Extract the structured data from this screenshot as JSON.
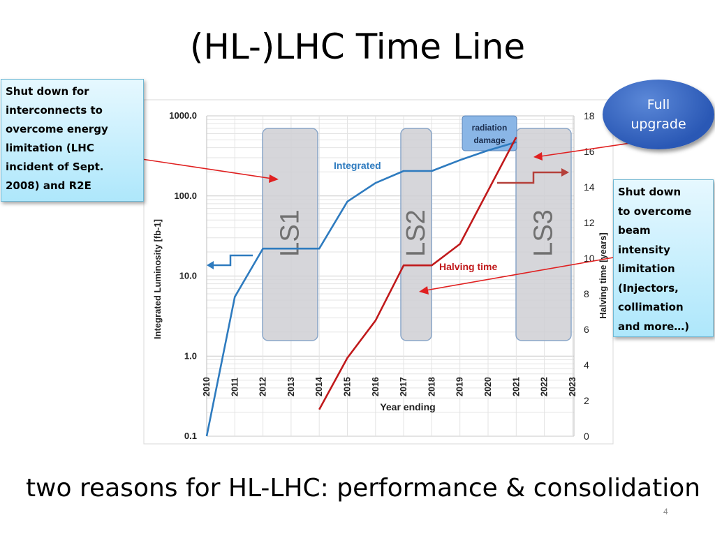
{
  "slide": {
    "title": "(HL-)LHC Time Line",
    "bottom_text": "two reasons for HL-LHC: performance & consolidation",
    "page_number": "4"
  },
  "callouts": {
    "left_lines": [
      "Shut down for",
      "interconnects to",
      "overcome energy",
      "limitation (LHC",
      "incident of Sept.",
      "2008) and R2E"
    ],
    "right_lines": [
      "Shut down",
      "to overcome",
      "beam",
      "intensity",
      "limitation",
      "(Injectors,",
      "collimation",
      "and more…)"
    ],
    "upgrade_lines": [
      "Full",
      "upgrade"
    ]
  },
  "chart_data": {
    "type": "line",
    "xlabel": "Year ending",
    "ylabel_left": "Integrated Luminosity [fb-1]",
    "ylabel_right": "Halving time [years]",
    "x_ticks": [
      "2010",
      "2011",
      "2012",
      "2013",
      "2014",
      "2015",
      "2016",
      "2017",
      "2018",
      "2019",
      "2020",
      "2021",
      "2022",
      "2023"
    ],
    "y_left_scale": "log",
    "y_left_ticks": [
      "0.1",
      "1.0",
      "10.0",
      "100.0",
      "1000.0"
    ],
    "y_left_range": [
      0.1,
      1000
    ],
    "y_right_range": [
      0,
      18
    ],
    "y_right_ticks": [
      "0",
      "2",
      "4",
      "6",
      "8",
      "10",
      "12",
      "14",
      "16",
      "18"
    ],
    "grid": true,
    "series": [
      {
        "name": "Integrated",
        "axis": "left",
        "color": "#2e7bbf",
        "points": [
          [
            2010,
            0.1
          ],
          [
            2011,
            5.5
          ],
          [
            2012,
            22
          ],
          [
            2013,
            22
          ],
          [
            2014,
            22
          ],
          [
            2015,
            85
          ],
          [
            2016,
            145
          ],
          [
            2017,
            205
          ],
          [
            2018,
            205
          ],
          [
            2019,
            280
          ],
          [
            2020,
            370
          ],
          [
            2021,
            470
          ]
        ]
      },
      {
        "name": "Halving time",
        "axis": "right",
        "color": "#c0191b",
        "points": [
          [
            2014,
            1.5
          ],
          [
            2015,
            4.4
          ],
          [
            2016,
            6.5
          ],
          [
            2017,
            9.6
          ],
          [
            2018,
            9.6
          ],
          [
            2019,
            10.8
          ],
          [
            2020,
            13.8
          ],
          [
            2021,
            16.8
          ]
        ]
      }
    ],
    "shutdowns": [
      {
        "label": "LS1",
        "from": 2012,
        "to": 2014
      },
      {
        "label": "LS2",
        "from": 2017,
        "to": 2018
      },
      {
        "label": "LS3",
        "from": 2021,
        "to": 2023
      }
    ],
    "annotations": [
      "radiation damage"
    ]
  }
}
